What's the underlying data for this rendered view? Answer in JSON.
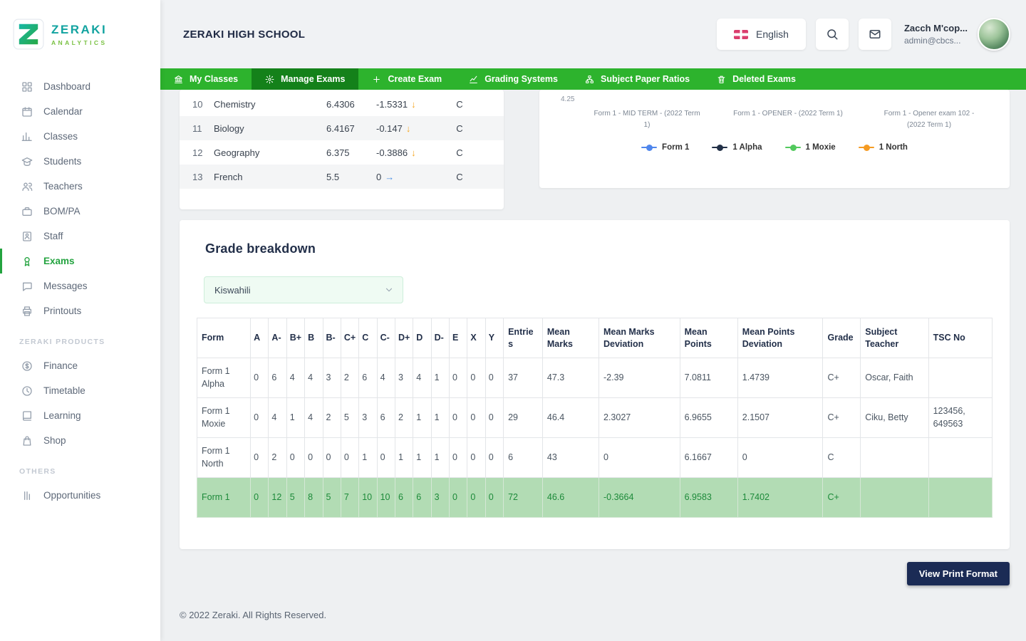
{
  "brand": {
    "name": "ZERAKI",
    "sub": "ANALYTICS"
  },
  "colors": {
    "nav_green": "#2db32d",
    "nav_green_active": "#14811a",
    "sidebar_active": "#23a33f",
    "total_row_bg": "#b2dcb4",
    "total_row_text": "#1d8a3a",
    "button_navy": "#1b2b55"
  },
  "header": {
    "school_name": "ZERAKI HIGH SCHOOL",
    "language": "English",
    "user_name": "Zacch M'cop...",
    "user_email": "admin@cbcs..."
  },
  "sidebar": {
    "sections": [
      {
        "label": "",
        "items": [
          {
            "icon": "dashboard",
            "label": "Dashboard"
          },
          {
            "icon": "calendar",
            "label": "Calendar"
          },
          {
            "icon": "classes",
            "label": "Classes"
          },
          {
            "icon": "students",
            "label": "Students"
          },
          {
            "icon": "teachers",
            "label": "Teachers"
          },
          {
            "icon": "bompa",
            "label": "BOM/PA"
          },
          {
            "icon": "staff",
            "label": "Staff"
          },
          {
            "icon": "exams",
            "label": "Exams",
            "active": true
          },
          {
            "icon": "messages",
            "label": "Messages"
          },
          {
            "icon": "printouts",
            "label": "Printouts"
          }
        ]
      },
      {
        "label": "ZERAKI PRODUCTS",
        "items": [
          {
            "icon": "finance",
            "label": "Finance"
          },
          {
            "icon": "timetable",
            "label": "Timetable"
          },
          {
            "icon": "learning",
            "label": "Learning"
          },
          {
            "icon": "shop",
            "label": "Shop"
          }
        ]
      },
      {
        "label": "OTHERS",
        "items": [
          {
            "icon": "opportunities",
            "label": "Opportunities"
          }
        ]
      }
    ]
  },
  "nav_tabs": [
    {
      "icon": "bank",
      "label": "My Classes",
      "active": false
    },
    {
      "icon": "gear",
      "label": "Manage Exams",
      "active": true
    },
    {
      "icon": "plus",
      "label": "Create Exam",
      "active": false
    },
    {
      "icon": "line-chart",
      "label": "Grading Systems",
      "active": false
    },
    {
      "icon": "sitemap",
      "label": "Subject Paper Ratios",
      "active": false
    },
    {
      "icon": "trash",
      "label": "Deleted Exams",
      "active": false
    }
  ],
  "subject_ranking": {
    "rows": [
      {
        "rank": "10",
        "subject": "Chemistry",
        "mean": "6.4306",
        "deviation": "-1.5331",
        "trend": "down",
        "grade": "C"
      },
      {
        "rank": "11",
        "subject": "Biology",
        "mean": "6.4167",
        "deviation": "-0.147",
        "trend": "down",
        "grade": "C"
      },
      {
        "rank": "12",
        "subject": "Geography",
        "mean": "6.375",
        "deviation": "-0.3886",
        "trend": "down",
        "grade": "C"
      },
      {
        "rank": "13",
        "subject": "French",
        "mean": "5.5",
        "deviation": "0",
        "trend": "flat",
        "grade": "C"
      }
    ],
    "trend_colors": {
      "down": "#f5a623",
      "flat": "#4a90e2"
    }
  },
  "chart_data": {
    "type": "line",
    "visible_y_tick": "4.25",
    "x": [
      "Form 1 - MID TERM - (2022 Term 1)",
      "Form 1 - OPENER - (2022 Term 1)",
      "Form 1 - Opener exam 102 - (2022 Term 1)"
    ],
    "series": [
      {
        "name": "Form 1",
        "color": "#4f86ec"
      },
      {
        "name": "1 Alpha",
        "color": "#223047"
      },
      {
        "name": "1 Moxie",
        "color": "#52c95d"
      },
      {
        "name": "1 North",
        "color": "#f59b23"
      }
    ],
    "legend_position": "bottom"
  },
  "grade_breakdown": {
    "title": "Grade breakdown",
    "subject_filter": "Kiswahili",
    "form_column": "Form",
    "grade_columns": [
      "A",
      "A-",
      "B+",
      "B",
      "B-",
      "C+",
      "C",
      "C-",
      "D+",
      "D",
      "D-",
      "E",
      "X",
      "Y"
    ],
    "stat_columns": [
      "Entries",
      "Mean Marks",
      "Mean Marks Deviation",
      "Mean Points",
      "Mean Points Deviation",
      "Grade",
      "Subject Teacher",
      "TSC No"
    ],
    "rows": [
      {
        "form": "Form 1 Alpha",
        "counts": [
          0,
          6,
          4,
          4,
          3,
          2,
          6,
          4,
          3,
          4,
          1,
          0,
          0,
          0
        ],
        "entries": "37",
        "mean_marks": "47.3",
        "mean_marks_deviation": "-2.39",
        "mean_points": "7.0811",
        "mean_points_deviation": "1.4739",
        "grade": "C+",
        "subject_teacher": "Oscar, Faith",
        "tsc_no": "",
        "total": false
      },
      {
        "form": "Form 1 Moxie",
        "counts": [
          0,
          4,
          1,
          4,
          2,
          5,
          3,
          6,
          2,
          1,
          1,
          0,
          0,
          0
        ],
        "entries": "29",
        "mean_marks": "46.4",
        "mean_marks_deviation": "2.3027",
        "mean_points": "6.9655",
        "mean_points_deviation": "2.1507",
        "grade": "C+",
        "subject_teacher": "Ciku, Betty",
        "tsc_no": "123456, 649563",
        "total": false
      },
      {
        "form": "Form 1 North",
        "counts": [
          0,
          2,
          0,
          0,
          0,
          0,
          1,
          0,
          1,
          1,
          1,
          0,
          0,
          0
        ],
        "entries": "6",
        "mean_marks": "43",
        "mean_marks_deviation": "0",
        "mean_points": "6.1667",
        "mean_points_deviation": "0",
        "grade": "C",
        "subject_teacher": "",
        "tsc_no": "",
        "total": false
      },
      {
        "form": "Form 1",
        "counts": [
          0,
          12,
          5,
          8,
          5,
          7,
          10,
          10,
          6,
          6,
          3,
          0,
          0,
          0
        ],
        "entries": "72",
        "mean_marks": "46.6",
        "mean_marks_deviation": "-0.3664",
        "mean_points": "6.9583",
        "mean_points_deviation": "1.7402",
        "grade": "C+",
        "subject_teacher": "",
        "tsc_no": "",
        "total": true
      }
    ]
  },
  "actions": {
    "view_print_format": "View Print Format"
  },
  "footer": {
    "text": "© 2022 Zeraki. All Rights Reserved."
  }
}
